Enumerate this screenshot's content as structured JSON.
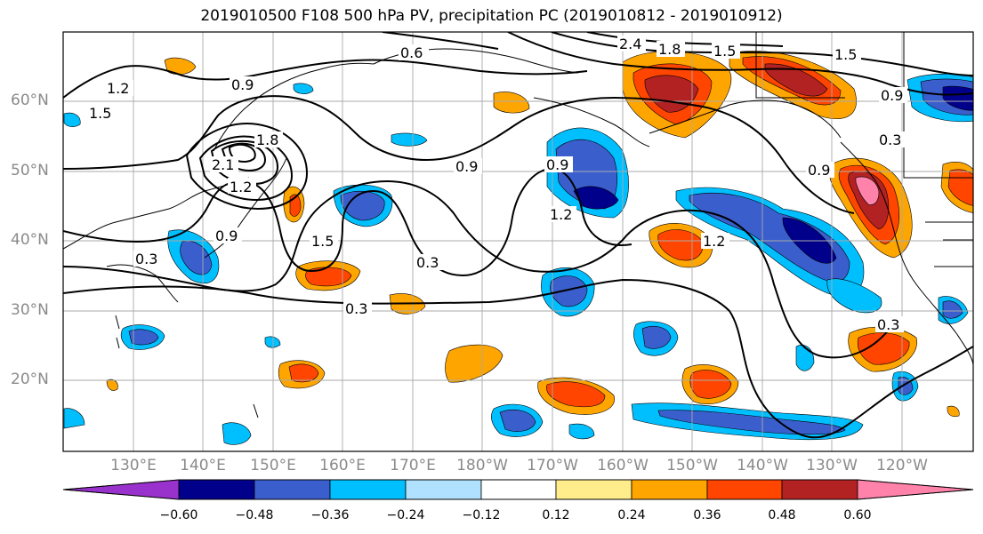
{
  "title": "2019010500 F108 500 hPa PV, precipitation PC (2019010812 - 2019010912)",
  "latitude_labels": [
    "60°N",
    "50°N",
    "40°N",
    "30°N",
    "20°N"
  ],
  "longitude_labels": [
    "130°E",
    "140°E",
    "150°E",
    "160°E",
    "170°E",
    "180°W",
    "170°W",
    "160°W",
    "150°W",
    "140°W",
    "130°W",
    "120°W"
  ],
  "colorbar": {
    "ticks": [
      "−0.60",
      "−0.48",
      "−0.36",
      "−0.24",
      "−0.12",
      "0.12",
      "0.24",
      "0.36",
      "0.48",
      "0.60"
    ],
    "colors": [
      "#9932cc",
      "#00008b",
      "#3a5fcd",
      "#00bfff",
      "#b0e2ff",
      "#ffffff",
      "#ffec8b",
      "#ffa500",
      "#ff4500",
      "#b22222",
      "#ff82ab"
    ]
  },
  "contour_labels": [
    "0.6",
    "0.9",
    "1.2",
    "1.5",
    "1.8",
    "2.1",
    "2.4",
    "0.3"
  ],
  "icons": [
    "coastline",
    "contour-lines",
    "shaded-precipitation"
  ]
}
